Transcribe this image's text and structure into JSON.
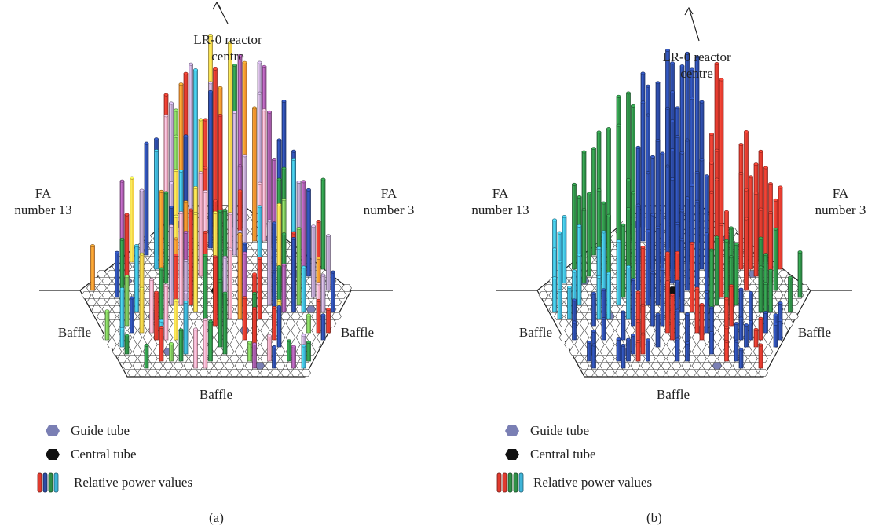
{
  "panels": [
    {
      "caption": "(a)",
      "reactor_label_line1": "LR-0 reactor",
      "reactor_label_line2": "centre",
      "fa_left_line1": "FA",
      "fa_left_line2": "number 13",
      "fa_right_line1": "FA",
      "fa_right_line2": "number 3",
      "baffle_left": "Baffle",
      "baffle_right": "Baffle",
      "baffle_bottom": "Baffle",
      "legend": {
        "guide_tube": "Guide tube",
        "central_tube": "Central tube",
        "relative_power": "Relative power values"
      },
      "legend_swatch_colors": [
        "#e03a2e",
        "#2c4aa3",
        "#2f8f47",
        "#3fb4d8"
      ]
    },
    {
      "caption": "(b)",
      "reactor_label_line1": "LR-0 reactor",
      "reactor_label_line2": "centre",
      "fa_left_line1": "FA",
      "fa_left_line2": "number 13",
      "fa_right_line1": "FA",
      "fa_right_line2": "number 3",
      "baffle_left": "Baffle",
      "baffle_right": "Baffle",
      "baffle_bottom": "Baffle",
      "legend": {
        "guide_tube": "Guide tube",
        "central_tube": "Central tube",
        "relative_power": "Relative power values"
      },
      "legend_swatch_colors": [
        "#e03a2e",
        "#e03a2e",
        "#2f8f47",
        "#2f8f47",
        "#3fb4d8"
      ]
    }
  ],
  "colors": {
    "red": "#e03a2e",
    "blue": "#2c4aa3",
    "green": "#2f8f47",
    "cyan": "#3fb4d8",
    "orange": "#f0922e",
    "purple": "#a45aa8",
    "lavender": "#b9a2cc",
    "yellow": "#f3d44a",
    "pink": "#f0a8c0",
    "lightgreen": "#7cc25a",
    "guide_tube": "#7a7fb4",
    "central_tube": "#111111"
  }
}
